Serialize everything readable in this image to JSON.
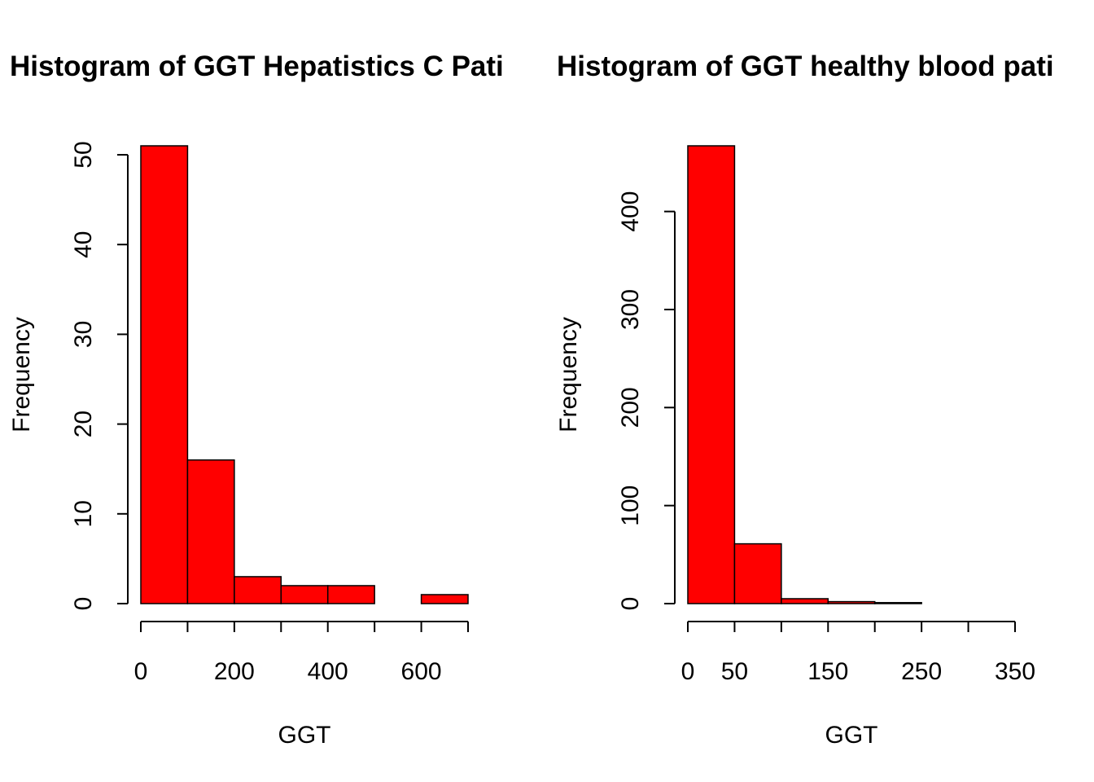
{
  "chart_data": [
    {
      "type": "bar",
      "title": "Histogram of GGT Hepatistics C Pati",
      "xlabel": "GGT",
      "ylabel": "Frequency",
      "bar_color": "#ff0000",
      "bins": [
        [
          0,
          100
        ],
        [
          100,
          200
        ],
        [
          200,
          300
        ],
        [
          300,
          400
        ],
        [
          400,
          500
        ],
        [
          500,
          600
        ],
        [
          600,
          700
        ]
      ],
      "values": [
        51,
        16,
        3,
        2,
        2,
        0,
        1
      ],
      "xlim": [
        0,
        700
      ],
      "ylim": [
        0,
        51
      ],
      "x_ticks": [
        0,
        100,
        200,
        300,
        400,
        500,
        600,
        700
      ],
      "x_tick_labels": [
        {
          "value": 0,
          "label": "0"
        },
        {
          "value": 200,
          "label": "200"
        },
        {
          "value": 400,
          "label": "400"
        },
        {
          "value": 600,
          "label": "600"
        }
      ],
      "y_ticks": [
        0,
        10,
        20,
        30,
        40,
        50
      ],
      "y_tick_labels": [
        "0",
        "10",
        "20",
        "30",
        "40",
        "50"
      ],
      "grid": false
    },
    {
      "type": "bar",
      "title": "Histogram of GGT healthy blood pati",
      "xlabel": "GGT",
      "ylabel": "Frequency",
      "bar_color": "#ff0000",
      "bins": [
        [
          0,
          50
        ],
        [
          50,
          100
        ],
        [
          100,
          150
        ],
        [
          150,
          200
        ],
        [
          200,
          250
        ],
        [
          250,
          300
        ],
        [
          300,
          350
        ]
      ],
      "values": [
        467,
        61,
        5,
        2,
        1,
        0,
        0
      ],
      "xlim": [
        0,
        350
      ],
      "ylim": [
        0,
        467
      ],
      "x_ticks": [
        0,
        50,
        100,
        150,
        200,
        250,
        300,
        350
      ],
      "x_tick_labels": [
        {
          "value": 0,
          "label": "0"
        },
        {
          "value": 50,
          "label": "50"
        },
        {
          "value": 150,
          "label": "150"
        },
        {
          "value": 250,
          "label": "250"
        },
        {
          "value": 350,
          "label": "350"
        }
      ],
      "y_ticks": [
        0,
        100,
        200,
        300,
        400
      ],
      "y_tick_labels": [
        "0",
        "100",
        "200",
        "300",
        "400"
      ],
      "grid": false
    }
  ]
}
